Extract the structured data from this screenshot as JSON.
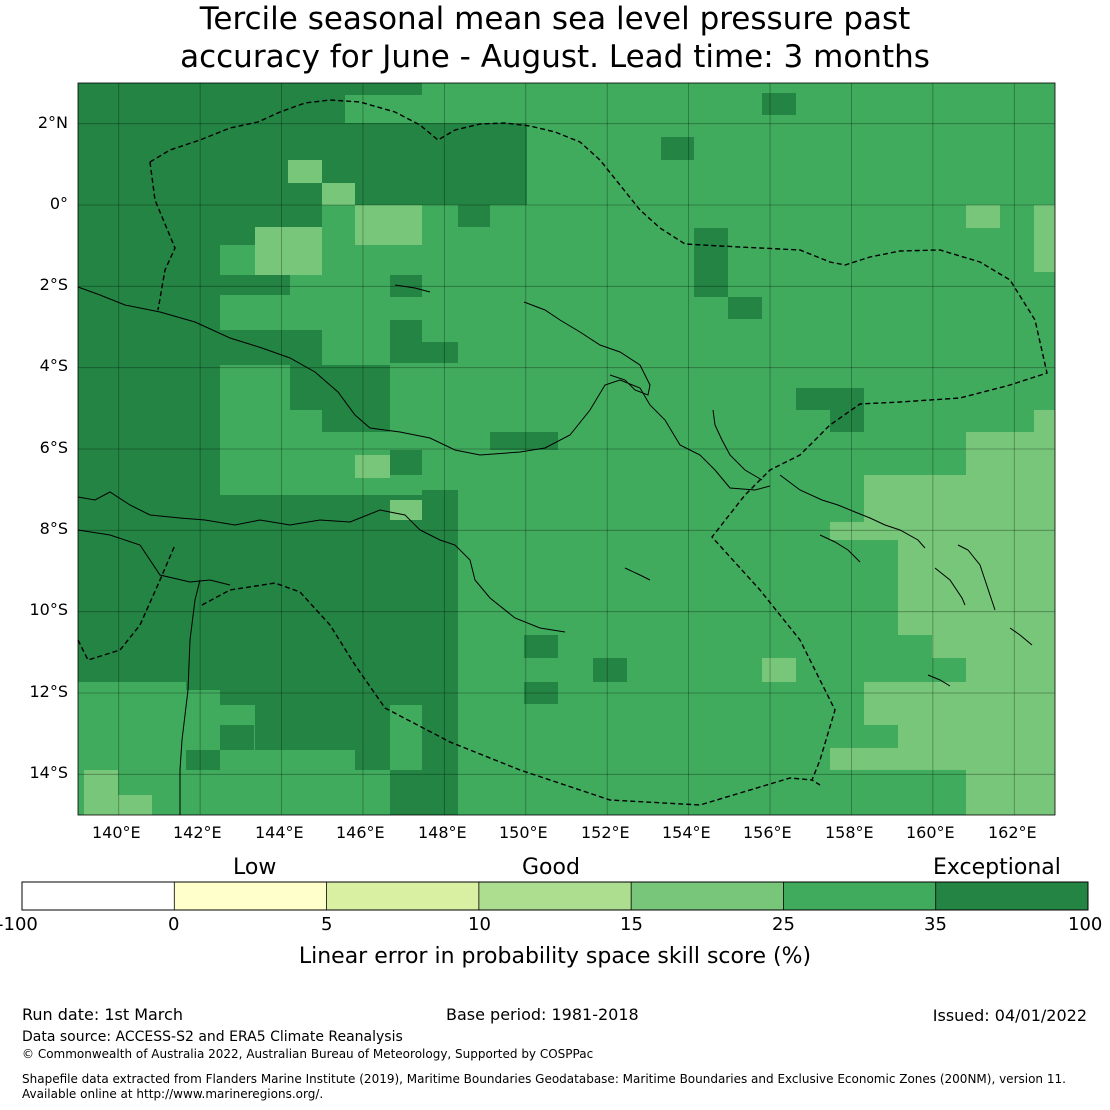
{
  "title": {
    "line1": "Tercile seasonal mean sea level pressure past",
    "line2": "accuracy for June - August. Lead time: 3 months"
  },
  "map": {
    "lon_range": [
      139,
      163
    ],
    "lat_range": [
      -15,
      3
    ],
    "grid_resolution_deg": 0.8,
    "lat_labels": [
      "2°N",
      "0°",
      "2°S",
      "4°S",
      "6°S",
      "8°S",
      "10°S",
      "12°S",
      "14°S"
    ],
    "lon_labels": [
      "140°E",
      "142°E",
      "144°E",
      "146°E",
      "148°E",
      "150°E",
      "152°E",
      "154°E",
      "156°E",
      "158°E",
      "160°E",
      "162°E"
    ]
  },
  "colorbar": {
    "category_labels": [
      "Low",
      "Good",
      "Exceptional"
    ],
    "tick_labels": [
      "-100",
      "0",
      "5",
      "10",
      "15",
      "25",
      "35",
      "100"
    ],
    "colors": [
      "#ffffff",
      "#ffffcc",
      "#d9f0a3",
      "#addd8e",
      "#78c679",
      "#41ab5d",
      "#238443"
    ],
    "title": "Linear error in probability space skill score (%)"
  },
  "footer": {
    "run_date": "Run date: 1st March",
    "base_period": "Base period: 1981-2018",
    "issued": "Issued: 04/01/2022",
    "data_source": "Data source: ACCESS-S2 and ERA5 Climate Reanalysis",
    "copyright": "© Commonwealth of Australia 2022, Australian Bureau of Meteorology, Supported by COSPPac",
    "shapefile_line1": "Shapefile data extracted from Flanders Marine Institute (2019), Maritime Boundaries Geodatabase: Maritime Boundaries and Exclusive Economic Zones (200NM), version 11.",
    "shapefile_line2": "Available online at http://www.marineregions.org/."
  }
}
